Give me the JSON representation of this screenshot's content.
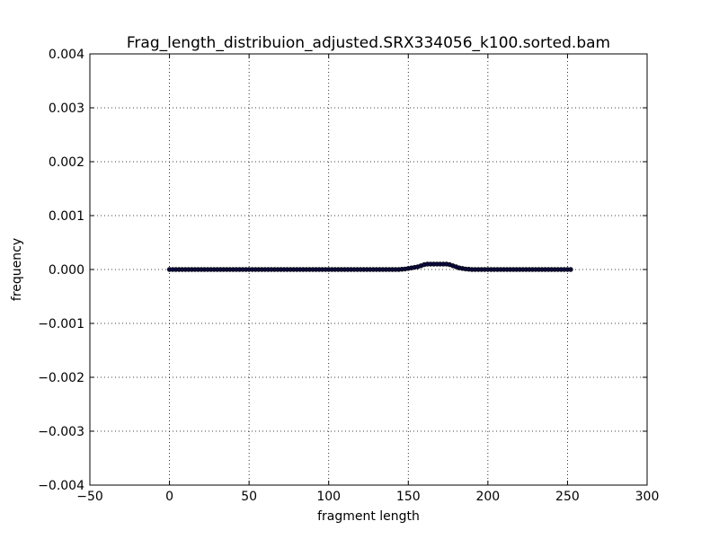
{
  "chart_data": {
    "type": "scatter",
    "title": "Frag_length_distribuion_adjusted.SRX334056_k100.sorted.bam",
    "xlabel": "fragment length",
    "ylabel": "frequency",
    "xlim": [
      -50,
      300
    ],
    "ylim": [
      -0.004,
      0.004
    ],
    "xticks": [
      "−50",
      "0",
      "50",
      "100",
      "150",
      "200",
      "250",
      "300"
    ],
    "yticks": [
      "−0.004",
      "−0.003",
      "−0.002",
      "−0.001",
      "0.000",
      "0.001",
      "0.002",
      "0.003",
      "0.004"
    ],
    "grid": true,
    "series": [
      {
        "color": "#0b0b40",
        "x": [
          0,
          2,
          4,
          6,
          8,
          10,
          12,
          14,
          16,
          18,
          20,
          22,
          24,
          26,
          28,
          30,
          32,
          34,
          36,
          38,
          40,
          42,
          44,
          46,
          48,
          50,
          52,
          54,
          56,
          58,
          60,
          62,
          64,
          66,
          68,
          70,
          72,
          74,
          76,
          78,
          80,
          82,
          84,
          86,
          88,
          90,
          92,
          94,
          96,
          98,
          100,
          102,
          104,
          106,
          108,
          110,
          112,
          114,
          116,
          118,
          120,
          122,
          124,
          126,
          128,
          130,
          132,
          134,
          136,
          138,
          140,
          142,
          144,
          146,
          148,
          150,
          152,
          154,
          156,
          158,
          160,
          162,
          164,
          166,
          168,
          170,
          172,
          174,
          176,
          178,
          180,
          182,
          184,
          186,
          188,
          190,
          192,
          194,
          196,
          198,
          200,
          202,
          204,
          206,
          208,
          210,
          212,
          214,
          216,
          218,
          220,
          222,
          224,
          226,
          228,
          230,
          232,
          234,
          236,
          238,
          240,
          242,
          244,
          246,
          248,
          250,
          252
        ],
        "y": [
          0,
          0,
          0,
          0,
          0,
          0,
          0,
          0,
          0,
          0,
          0,
          0,
          0,
          0,
          0,
          0,
          0,
          0,
          0,
          0,
          0,
          0,
          0,
          0,
          0,
          0,
          0,
          0,
          0,
          0,
          0,
          0,
          0,
          0,
          0,
          0,
          0,
          0,
          0,
          0,
          0,
          0,
          0,
          0,
          0,
          0,
          0,
          0,
          0,
          0,
          0,
          0,
          0,
          0,
          0,
          0,
          0,
          0,
          0,
          0,
          0,
          0,
          0,
          0,
          0,
          0,
          0,
          0,
          0,
          0,
          0,
          0,
          0,
          5e-06,
          1e-05,
          2e-05,
          3e-05,
          4e-05,
          5e-05,
          7e-05,
          9e-05,
          0.0001,
          0.0001,
          0.0001,
          0.0001,
          0.0001,
          0.0001,
          0.0001,
          9e-05,
          7e-05,
          5e-05,
          3e-05,
          2e-05,
          1e-05,
          5e-06,
          0,
          0,
          0,
          0,
          0,
          0,
          0,
          0,
          0,
          0,
          0,
          0,
          0,
          0,
          0,
          0,
          0,
          0,
          0,
          0,
          0,
          0,
          0,
          0,
          0,
          0,
          0,
          0,
          0,
          0,
          0,
          0
        ]
      }
    ]
  }
}
